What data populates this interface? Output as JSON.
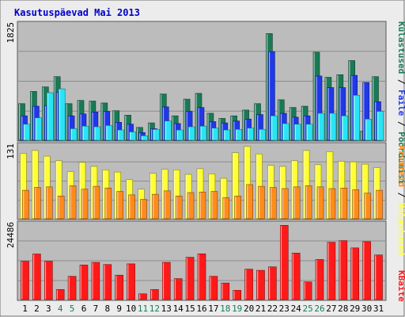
{
  "title": "Kasutuspäevad Mai 2013",
  "colors": {
    "page_bg": "#ececec",
    "panel_bg": "#bcbcbc",
    "title": "#0000cc",
    "grid": "#8c8c8c",
    "visits": "#1a7a56",
    "pages": "#1f38e8",
    "files": "#29e4f5",
    "hosts": "#ff8c1a",
    "kbytes": "#ff1a1a",
    "hits": "#ffff33",
    "weekend_tick": "#127d5a",
    "tick": "#000000"
  },
  "chart_data": [
    {
      "type": "bar",
      "name": "top",
      "ylabel_parts": [
        {
          "text": "Külastused",
          "color": "#1a7a56"
        },
        {
          "text": " / ",
          "color": "#000000"
        },
        {
          "text": "Faile",
          "color": "#1f38e8"
        },
        {
          "text": " / ",
          "color": "#000000"
        },
        {
          "text": "Pöördumisi",
          "color": "#1a7a56"
        }
      ],
      "ymax_label": "1825",
      "ylim": [
        0,
        1825
      ],
      "series": [
        {
          "name": "Pöördumisi",
          "values": [
            570,
            760,
            830,
            990,
            570,
            620,
            610,
            580,
            460,
            390,
            200,
            270,
            720,
            380,
            640,
            730,
            420,
            340,
            380,
            470,
            570,
            1660,
            630,
            510,
            530,
            1370,
            980,
            1020,
            1240,
            140,
            990
          ]
        },
        {
          "name": "Faile",
          "values": [
            380,
            530,
            540,
            750,
            380,
            410,
            440,
            450,
            280,
            250,
            120,
            180,
            520,
            260,
            450,
            510,
            290,
            270,
            300,
            330,
            400,
            1380,
            420,
            360,
            380,
            1000,
            820,
            820,
            1010,
            900,
            600
          ]
        },
        {
          "name": "Külastused",
          "values": [
            250,
            350,
            740,
            800,
            180,
            220,
            210,
            230,
            160,
            130,
            70,
            170,
            300,
            160,
            210,
            220,
            190,
            160,
            170,
            190,
            170,
            380,
            260,
            250,
            250,
            420,
            420,
            380,
            700,
            330,
            450
          ]
        }
      ]
    },
    {
      "type": "bar",
      "name": "middle",
      "ylabel_parts": [
        {
          "text": "Arvuteid",
          "color": "#ff8c1a"
        },
        {
          "text": " / ",
          "color": "#000000"
        },
        {
          "text": "Külastused",
          "color": "#ffff33"
        }
      ],
      "ymax_label": "131",
      "ylim": [
        0,
        131
      ],
      "series": [
        {
          "name": "Külastused",
          "values": [
            115,
            120,
            110,
            102,
            83,
            99,
            92,
            86,
            82,
            69,
            52,
            80,
            87,
            86,
            78,
            88,
            79,
            71,
            116,
            127,
            114,
            94,
            92,
            102,
            120,
            95,
            118,
            101,
            100,
            96,
            90
          ]
        },
        {
          "name": "Arvuteid",
          "values": [
            50,
            55,
            56,
            40,
            58,
            52,
            57,
            54,
            48,
            42,
            34,
            43,
            49,
            40,
            46,
            47,
            48,
            37,
            40,
            60,
            57,
            55,
            53,
            56,
            58,
            56,
            53,
            54,
            51,
            45,
            50
          ]
        }
      ]
    },
    {
      "type": "bar",
      "name": "bottom",
      "ylabel_parts": [
        {
          "text": "KBaite",
          "color": "#ff1a1a"
        }
      ],
      "ymax_label": "24486",
      "ylim": [
        0,
        24486
      ],
      "series": [
        {
          "name": "KBaite",
          "values": [
            12450,
            14820,
            12450,
            3280,
            7560,
            11230,
            12100,
            11400,
            7940,
            11620,
            1860,
            3280,
            12100,
            6810,
            13760,
            14880,
            7570,
            5380,
            3010,
            9890,
            9510,
            10640,
            24150,
            15130,
            5730,
            13040,
            18650,
            19170,
            16800,
            18840,
            14510
          ]
        }
      ]
    }
  ],
  "days": [
    "1",
    "2",
    "3",
    "4",
    "5",
    "6",
    "7",
    "8",
    "9",
    "10",
    "11",
    "12",
    "13",
    "14",
    "15",
    "16",
    "17",
    "18",
    "19",
    "20",
    "21",
    "22",
    "23",
    "24",
    "25",
    "26",
    "27",
    "28",
    "29",
    "30",
    "31"
  ],
  "weekend_days": [
    4,
    5,
    11,
    12,
    18,
    19,
    25,
    26
  ]
}
